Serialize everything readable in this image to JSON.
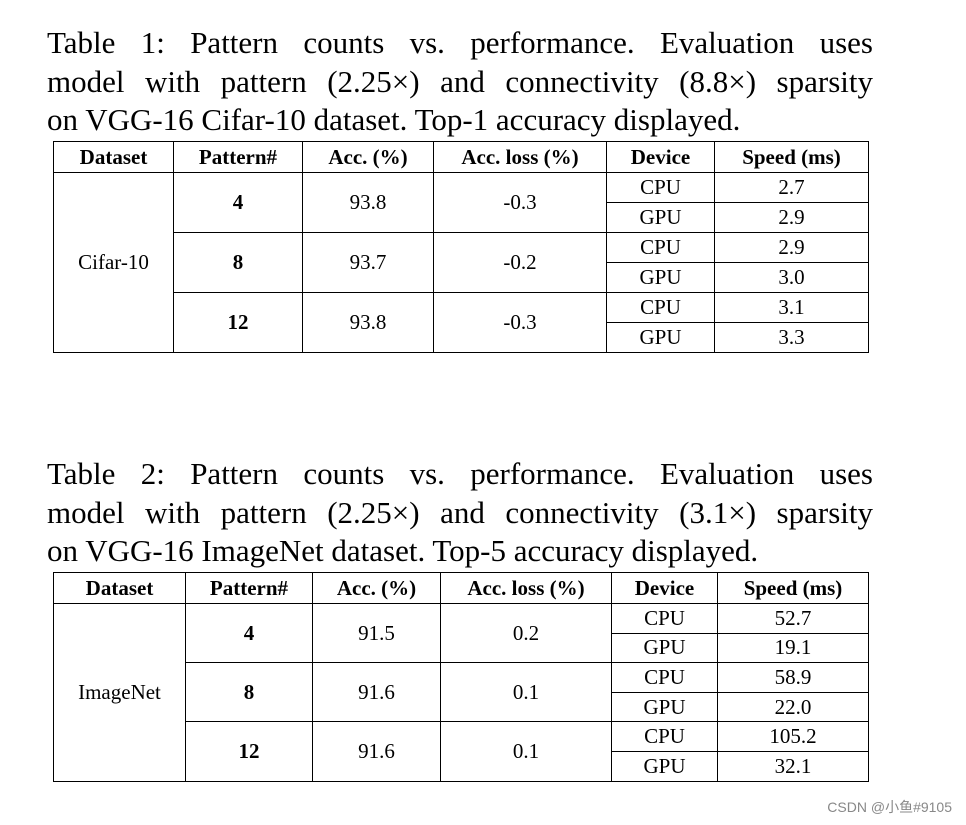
{
  "table1": {
    "caption_lines": [
      "Table 1: Pattern counts vs. performance. Evaluation uses",
      "model with pattern (2.25×) and connectivity (8.8×) sparsity",
      "on VGG-16 Cifar-10 dataset. Top-1 accuracy displayed."
    ],
    "headers": [
      "Dataset",
      "Pattern#",
      "Acc. (%)",
      "Acc. loss (%)",
      "Device",
      "Speed (ms)"
    ],
    "dataset": "Cifar-10",
    "groups": [
      {
        "pattern": "4",
        "acc": "93.8",
        "loss": "-0.3",
        "rows": [
          {
            "device": "CPU",
            "speed": "2.7"
          },
          {
            "device": "GPU",
            "speed": "2.9"
          }
        ]
      },
      {
        "pattern": "8",
        "acc": "93.7",
        "loss": "-0.2",
        "rows": [
          {
            "device": "CPU",
            "speed": "2.9"
          },
          {
            "device": "GPU",
            "speed": "3.0"
          }
        ]
      },
      {
        "pattern": "12",
        "acc": "93.8",
        "loss": "-0.3",
        "rows": [
          {
            "device": "CPU",
            "speed": "3.1"
          },
          {
            "device": "GPU",
            "speed": "3.3"
          }
        ]
      }
    ]
  },
  "table2": {
    "caption_lines": [
      "Table 2: Pattern counts vs. performance. Evaluation uses",
      "model with pattern (2.25×) and connectivity (3.1×) sparsity",
      "on VGG-16 ImageNet dataset. Top-5 accuracy displayed."
    ],
    "headers": [
      "Dataset",
      "Pattern#",
      "Acc. (%)",
      "Acc. loss (%)",
      "Device",
      "Speed (ms)"
    ],
    "dataset": "ImageNet",
    "groups": [
      {
        "pattern": "4",
        "acc": "91.5",
        "loss": "0.2",
        "rows": [
          {
            "device": "CPU",
            "speed": "52.7"
          },
          {
            "device": "GPU",
            "speed": "19.1"
          }
        ]
      },
      {
        "pattern": "8",
        "acc": "91.6",
        "loss": "0.1",
        "rows": [
          {
            "device": "CPU",
            "speed": "58.9"
          },
          {
            "device": "GPU",
            "speed": "22.0"
          }
        ]
      },
      {
        "pattern": "12",
        "acc": "91.6",
        "loss": "0.1",
        "rows": [
          {
            "device": "CPU",
            "speed": "105.2"
          },
          {
            "device": "GPU",
            "speed": "32.1"
          }
        ]
      }
    ]
  },
  "watermark": "CSDN @小鱼#9105"
}
